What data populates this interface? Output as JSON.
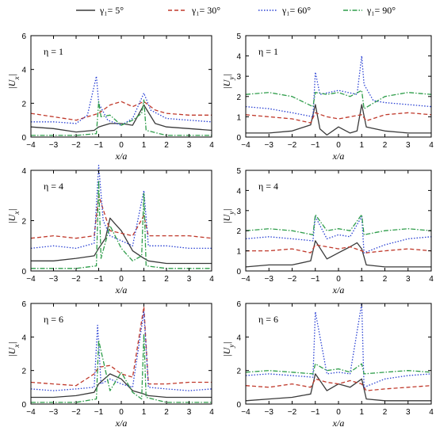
{
  "legend": [
    {
      "label": "γ₁= 5°",
      "color": "#3a3a3a",
      "dash": "solid"
    },
    {
      "label": "γ₁= 30°",
      "color": "#c0392b",
      "dash": "dash"
    },
    {
      "label": "γ₁= 60°",
      "color": "#2940d3",
      "dash": "dot"
    },
    {
      "label": "γ₁= 90°",
      "color": "#2e9d4a",
      "dash": "dashdot"
    }
  ],
  "chart_data": [
    {
      "type": "line",
      "title": "η = 1",
      "xlabel": "x/a",
      "ylabel": "|U_x|",
      "xlim": [
        -4,
        4
      ],
      "ylim": [
        0,
        6
      ],
      "xticks": [
        "-4",
        "-3",
        "-2",
        "-1",
        "0",
        "1",
        "2",
        "3",
        "4"
      ],
      "yticks": [
        "0",
        "2",
        "4",
        "6"
      ],
      "series": [
        {
          "name": "γ₁= 5°",
          "x": [
            -4,
            -3,
            -2,
            -1.2,
            -1,
            -0.5,
            0,
            0.5,
            1,
            1.5,
            2,
            3,
            4
          ],
          "y": [
            0.6,
            0.5,
            0.3,
            0.4,
            0.6,
            0.8,
            0.8,
            0.7,
            1.9,
            0.8,
            0.6,
            0.5,
            0.4
          ]
        },
        {
          "name": "γ₁= 30°",
          "x": [
            -4,
            -3,
            -2,
            -1.5,
            -1,
            -0.5,
            0,
            0.5,
            1,
            1.5,
            2,
            3,
            4
          ],
          "y": [
            1.4,
            1.2,
            1.0,
            1.2,
            1.4,
            1.9,
            2.1,
            1.8,
            2.1,
            1.6,
            1.4,
            1.3,
            1.3
          ]
        },
        {
          "name": "γ₁= 60°",
          "x": [
            -4,
            -3,
            -2,
            -1.5,
            -1.1,
            -1,
            -0.6,
            0,
            0.5,
            1,
            1.3,
            2,
            3,
            4
          ],
          "y": [
            0.9,
            0.9,
            0.8,
            1.3,
            3.6,
            2.0,
            1.0,
            0.7,
            1.1,
            2.6,
            1.6,
            1.1,
            1.0,
            0.9
          ]
        },
        {
          "name": "γ₁= 90°",
          "x": [
            -4,
            -3,
            -2,
            -1.1,
            -1,
            -0.9,
            -0.5,
            0,
            0.5,
            0.9,
            1,
            1.1,
            2,
            3,
            4
          ],
          "y": [
            0.1,
            0.1,
            0.1,
            0.2,
            2.1,
            1.2,
            1.3,
            0.7,
            1.0,
            1.4,
            2.2,
            0.4,
            0.1,
            0.1,
            0.1
          ]
        }
      ]
    },
    {
      "type": "line",
      "title": "η = 1",
      "xlabel": "x/a",
      "ylabel": "|U_y|",
      "xlim": [
        -4,
        4
      ],
      "ylim": [
        0,
        5
      ],
      "xticks": [
        "-4",
        "-3",
        "-2",
        "-1",
        "0",
        "1",
        "2",
        "3",
        "4"
      ],
      "yticks": [
        "0",
        "1",
        "2",
        "3",
        "4",
        "5"
      ],
      "series": [
        {
          "name": "γ₁= 5°",
          "x": [
            -4,
            -3,
            -2,
            -1.2,
            -1,
            -0.8,
            -0.5,
            0,
            0.5,
            0.8,
            1,
            1.2,
            2,
            3,
            4
          ],
          "y": [
            0.2,
            0.2,
            0.3,
            0.6,
            1.6,
            0.4,
            0.1,
            0.5,
            0.2,
            0.3,
            1.6,
            0.5,
            0.3,
            0.2,
            0.2
          ]
        },
        {
          "name": "γ₁= 30°",
          "x": [
            -4,
            -3,
            -2,
            -1.2,
            -1,
            -0.5,
            0,
            0.5,
            1,
            1.2,
            2,
            3,
            4
          ],
          "y": [
            1.1,
            1.0,
            0.9,
            0.7,
            1.2,
            1.0,
            0.9,
            1.0,
            1.1,
            0.8,
            1.1,
            1.2,
            1.1
          ]
        },
        {
          "name": "γ₁= 60°",
          "x": [
            -4,
            -3,
            -2,
            -1.1,
            -1,
            -0.8,
            0,
            0.8,
            1,
            1.1,
            1.5,
            2,
            3,
            4
          ],
          "y": [
            1.5,
            1.4,
            1.2,
            1.0,
            3.2,
            2.1,
            2.3,
            2.1,
            4.0,
            2.6,
            1.8,
            1.7,
            1.6,
            1.5
          ]
        },
        {
          "name": "γ₁= 90°",
          "x": [
            -4,
            -3,
            -2,
            -1.1,
            -1,
            -0.5,
            0,
            0.5,
            1,
            1.1,
            2,
            3,
            4
          ],
          "y": [
            2.1,
            2.2,
            2.0,
            1.5,
            2.2,
            2.1,
            2.2,
            2.0,
            2.3,
            1.4,
            2.0,
            2.2,
            2.1
          ]
        }
      ]
    },
    {
      "type": "line",
      "title": "η = 4",
      "xlabel": "x/a",
      "ylabel": "|U_x|",
      "xlim": [
        -4,
        4
      ],
      "ylim": [
        0,
        4
      ],
      "xticks": [
        "-4",
        "-3",
        "-2",
        "-1",
        "0",
        "1",
        "2",
        "3",
        "4"
      ],
      "yticks": [
        "0",
        "2",
        "4"
      ],
      "series": [
        {
          "name": "γ₁= 5°",
          "x": [
            -4,
            -3,
            -2,
            -1.2,
            -1,
            -0.7,
            -0.5,
            -0.2,
            0,
            0.5,
            1,
            1.2,
            2,
            3,
            4
          ],
          "y": [
            0.4,
            0.4,
            0.5,
            0.6,
            0.9,
            1.3,
            2.1,
            1.8,
            1.6,
            0.8,
            0.5,
            0.4,
            0.3,
            0.3,
            0.3
          ]
        },
        {
          "name": "γ₁= 30°",
          "x": [
            -4,
            -3,
            -2,
            -1.2,
            -1,
            -0.5,
            0,
            0.5,
            1,
            1.2,
            2,
            3,
            4
          ],
          "y": [
            1.3,
            1.4,
            1.3,
            1.4,
            3.0,
            1.6,
            1.5,
            1.4,
            2.2,
            1.4,
            1.4,
            1.4,
            1.3
          ]
        },
        {
          "name": "γ₁= 60°",
          "x": [
            -4,
            -3,
            -2,
            -1.2,
            -1,
            -0.8,
            -0.5,
            0,
            0.5,
            1,
            1.2,
            2,
            3,
            4
          ],
          "y": [
            0.9,
            1.0,
            0.9,
            1.1,
            4.2,
            2.0,
            1.4,
            1.2,
            1.0,
            3.2,
            1.0,
            1.0,
            0.9,
            0.9
          ]
        },
        {
          "name": "γ₁= 90°",
          "x": [
            -4,
            -3,
            -2,
            -1.1,
            -1,
            -0.9,
            -0.5,
            0,
            0.5,
            0.9,
            1,
            1.1,
            2,
            3,
            4
          ],
          "y": [
            0.1,
            0.1,
            0.1,
            0.2,
            3.6,
            0.5,
            1.8,
            0.9,
            0.4,
            0.6,
            3.1,
            0.2,
            0.1,
            0.1,
            0.1
          ]
        }
      ]
    },
    {
      "type": "line",
      "title": "η = 4",
      "xlabel": "x/a",
      "ylabel": "|U_y|",
      "xlim": [
        -4,
        4
      ],
      "ylim": [
        0,
        5
      ],
      "xticks": [
        "-4",
        "-3",
        "-2",
        "-1",
        "0",
        "1",
        "2",
        "3",
        "4"
      ],
      "yticks": [
        "0",
        "1",
        "2",
        "3",
        "4",
        "5"
      ],
      "series": [
        {
          "name": "γ₁= 5°",
          "x": [
            -4,
            -3,
            -2,
            -1.2,
            -1,
            -0.5,
            0,
            0.5,
            0.8,
            1,
            1.2,
            2,
            3,
            4
          ],
          "y": [
            0.2,
            0.3,
            0.3,
            0.5,
            1.5,
            0.6,
            0.9,
            1.2,
            1.4,
            1.1,
            0.3,
            0.2,
            0.2,
            0.2
          ]
        },
        {
          "name": "γ₁= 30°",
          "x": [
            -4,
            -3,
            -2,
            -1.2,
            -1,
            -0.5,
            0,
            0.5,
            1,
            1.2,
            2,
            3,
            4
          ],
          "y": [
            1.0,
            1.0,
            1.1,
            0.9,
            1.3,
            1.2,
            1.1,
            1.2,
            1.0,
            0.9,
            1.0,
            1.1,
            1.0
          ]
        },
        {
          "name": "γ₁= 60°",
          "x": [
            -4,
            -3,
            -2,
            -1.1,
            -1,
            -0.5,
            0,
            0.5,
            1,
            1.1,
            2,
            3,
            4
          ],
          "y": [
            1.6,
            1.7,
            1.6,
            1.5,
            2.7,
            1.6,
            1.8,
            1.7,
            2.7,
            0.9,
            1.3,
            1.6,
            1.7
          ]
        },
        {
          "name": "γ₁= 90°",
          "x": [
            -4,
            -3,
            -2,
            -1.1,
            -1,
            -0.5,
            0,
            0.5,
            1,
            1.1,
            2,
            3,
            4
          ],
          "y": [
            2.0,
            2.1,
            2.0,
            1.8,
            2.8,
            2.0,
            2.1,
            2.0,
            2.8,
            1.8,
            2.0,
            2.1,
            2.0
          ]
        }
      ]
    },
    {
      "type": "line",
      "title": "η = 6",
      "xlabel": "x/a",
      "ylabel": "|U_x|",
      "xlim": [
        -4,
        4
      ],
      "ylim": [
        0,
        6
      ],
      "xticks": [
        "-4",
        "-3",
        "-2",
        "-1",
        "0",
        "1",
        "2",
        "3",
        "4"
      ],
      "yticks": [
        "0",
        "2",
        "4",
        "6"
      ],
      "series": [
        {
          "name": "γ₁= 5°",
          "x": [
            -4,
            -3,
            -2,
            -1.2,
            -1,
            -0.5,
            0,
            0.5,
            1,
            1.2,
            2,
            3,
            4
          ],
          "y": [
            0.4,
            0.4,
            0.5,
            0.7,
            1.2,
            1.8,
            1.5,
            0.8,
            0.6,
            0.5,
            0.4,
            0.4,
            0.4
          ]
        },
        {
          "name": "γ₁= 30°",
          "x": [
            -4,
            -3,
            -2,
            -1.2,
            -1,
            -0.5,
            0,
            0.5,
            1,
            1.2,
            2,
            3,
            4
          ],
          "y": [
            1.3,
            1.2,
            1.1,
            1.8,
            2.2,
            2.3,
            1.8,
            1.6,
            5.8,
            1.2,
            1.2,
            1.3,
            1.3
          ]
        },
        {
          "name": "γ₁= 60°",
          "x": [
            -4,
            -3,
            -2,
            -1.2,
            -1.05,
            -0.9,
            -0.5,
            0,
            0.5,
            1,
            1.2,
            2,
            3,
            4
          ],
          "y": [
            0.9,
            0.8,
            0.9,
            1.0,
            4.7,
            1.2,
            1.5,
            1.2,
            1.0,
            5.5,
            1.0,
            0.9,
            0.8,
            0.9
          ]
        },
        {
          "name": "γ₁= 90°",
          "x": [
            -4,
            -3,
            -2,
            -1.1,
            -1,
            -0.5,
            0,
            0.5,
            0.9,
            1,
            1.1,
            2,
            3,
            4
          ],
          "y": [
            0.1,
            0.1,
            0.1,
            0.3,
            3.8,
            0.8,
            1.9,
            0.7,
            0.3,
            4.2,
            0.4,
            0.1,
            0.1,
            0.1
          ]
        }
      ]
    },
    {
      "type": "line",
      "title": "η = 6",
      "xlabel": "x/a",
      "ylabel": "|U_y|",
      "xlim": [
        -4,
        4
      ],
      "ylim": [
        0,
        6
      ],
      "xticks": [
        "-4",
        "-3",
        "-2",
        "-1",
        "0",
        "1",
        "2",
        "3",
        "4"
      ],
      "yticks": [
        "0",
        "2",
        "4",
        "6"
      ],
      "series": [
        {
          "name": "γ₁= 5°",
          "x": [
            -4,
            -3,
            -2,
            -1.2,
            -1,
            -0.5,
            0,
            0.5,
            1,
            1.2,
            2,
            3,
            4
          ],
          "y": [
            0.2,
            0.3,
            0.4,
            0.6,
            1.8,
            0.8,
            1.2,
            1.0,
            1.5,
            0.3,
            0.2,
            0.2,
            0.2
          ]
        },
        {
          "name": "γ₁= 30°",
          "x": [
            -4,
            -3,
            -2,
            -1.2,
            -1,
            -0.5,
            0,
            0.5,
            1,
            1.2,
            2,
            3,
            4
          ],
          "y": [
            1.1,
            1.0,
            1.2,
            1.0,
            1.5,
            1.3,
            1.2,
            1.4,
            1.2,
            0.8,
            0.9,
            1.0,
            1.1
          ]
        },
        {
          "name": "γ₁= 60°",
          "x": [
            -4,
            -3,
            -2,
            -1.1,
            -1,
            -0.5,
            0,
            0.5,
            1,
            1.1,
            2,
            3,
            4
          ],
          "y": [
            1.7,
            1.8,
            1.7,
            1.6,
            5.5,
            1.8,
            1.9,
            1.8,
            6.0,
            1.0,
            1.5,
            1.7,
            1.8
          ]
        },
        {
          "name": "γ₁= 90°",
          "x": [
            -4,
            -3,
            -2,
            -1.1,
            -1,
            -0.5,
            0,
            0.5,
            1,
            1.1,
            2,
            3,
            4
          ],
          "y": [
            1.9,
            2.0,
            1.9,
            1.8,
            2.4,
            2.0,
            2.1,
            1.9,
            2.4,
            1.8,
            1.9,
            2.0,
            1.9
          ]
        }
      ]
    }
  ]
}
